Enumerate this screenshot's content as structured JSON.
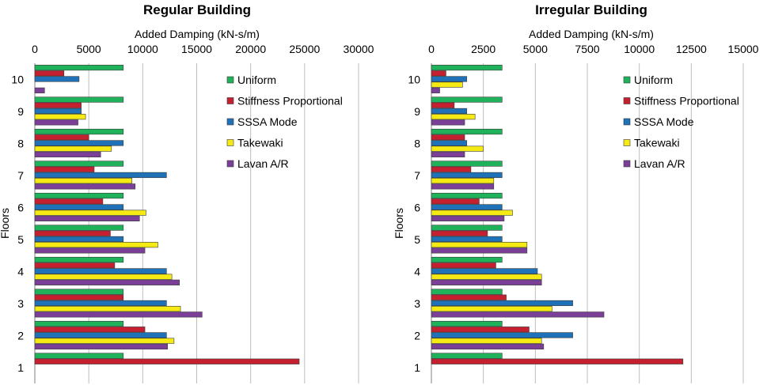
{
  "chart_data": [
    {
      "type": "bar",
      "orientation": "horizontal",
      "title": "Regular Building",
      "xlabel": "Added Damping (kN-s/m)",
      "ylabel": "Floors",
      "xlim": [
        0,
        30000
      ],
      "xticks": [
        "0",
        "5000",
        "10000",
        "15000",
        "20000",
        "25000",
        "30000"
      ],
      "xtick_values": [
        0,
        5000,
        10000,
        15000,
        20000,
        25000,
        30000
      ],
      "categories": [
        "1",
        "2",
        "3",
        "4",
        "5",
        "6",
        "7",
        "8",
        "9",
        "10"
      ],
      "grid": "vertical",
      "legend_position": "right",
      "series": [
        {
          "name": "Uniform",
          "color": "#1fb25a",
          "values": [
            8200,
            8200,
            8200,
            8200,
            8200,
            8200,
            8200,
            8200,
            8200,
            8200
          ]
        },
        {
          "name": "Stiffness Proportional",
          "color": "#c5202f",
          "values": [
            24500,
            10200,
            8200,
            7400,
            7000,
            6300,
            5500,
            5000,
            4300,
            2700
          ]
        },
        {
          "name": "SSSA Mode",
          "color": "#1f72b8",
          "values": [
            0,
            12200,
            12200,
            12200,
            8200,
            8200,
            12200,
            8200,
            4300,
            4100
          ]
        },
        {
          "name": "Takewaki",
          "color": "#f5ea14",
          "values": [
            0,
            12900,
            13500,
            12700,
            11400,
            10300,
            9000,
            7100,
            4700,
            0
          ]
        },
        {
          "name": "Lavan A/R",
          "color": "#7b3f98",
          "values": [
            0,
            12300,
            15500,
            13400,
            10200,
            9700,
            9300,
            6100,
            4000,
            900
          ]
        }
      ]
    },
    {
      "type": "bar",
      "orientation": "horizontal",
      "title": "Irregular Building",
      "xlabel": "Added Damping (kN-s/m)",
      "ylabel": "Floors",
      "xlim": [
        0,
        15000
      ],
      "xticks": [
        "0",
        "2500",
        "5000",
        "7500",
        "10000",
        "12500",
        "15000"
      ],
      "xtick_values": [
        0,
        2500,
        5000,
        7500,
        10000,
        12500,
        15000
      ],
      "categories": [
        "1",
        "2",
        "3",
        "4",
        "5",
        "6",
        "7",
        "8",
        "9",
        "10"
      ],
      "grid": "vertical",
      "legend_position": "right",
      "series": [
        {
          "name": "Uniform",
          "color": "#1fb25a",
          "values": [
            3400,
            3400,
            3400,
            3400,
            3400,
            3400,
            3400,
            3400,
            3400,
            3400
          ]
        },
        {
          "name": "Stiffness Proportional",
          "color": "#c5202f",
          "values": [
            12100,
            4700,
            3600,
            3100,
            2700,
            2300,
            1900,
            1600,
            1100,
            700
          ]
        },
        {
          "name": "SSSA Mode",
          "color": "#1f72b8",
          "values": [
            0,
            6800,
            6800,
            5100,
            3400,
            3400,
            3400,
            1700,
            1700,
            1700
          ]
        },
        {
          "name": "Takewaki",
          "color": "#f5ea14",
          "values": [
            0,
            5300,
            5800,
            5300,
            4600,
            3900,
            3000,
            2500,
            2100,
            1500
          ]
        },
        {
          "name": "Lavan A/R",
          "color": "#7b3f98",
          "values": [
            0,
            5400,
            8300,
            5300,
            4600,
            3500,
            3000,
            1600,
            1600,
            400
          ]
        }
      ]
    }
  ]
}
